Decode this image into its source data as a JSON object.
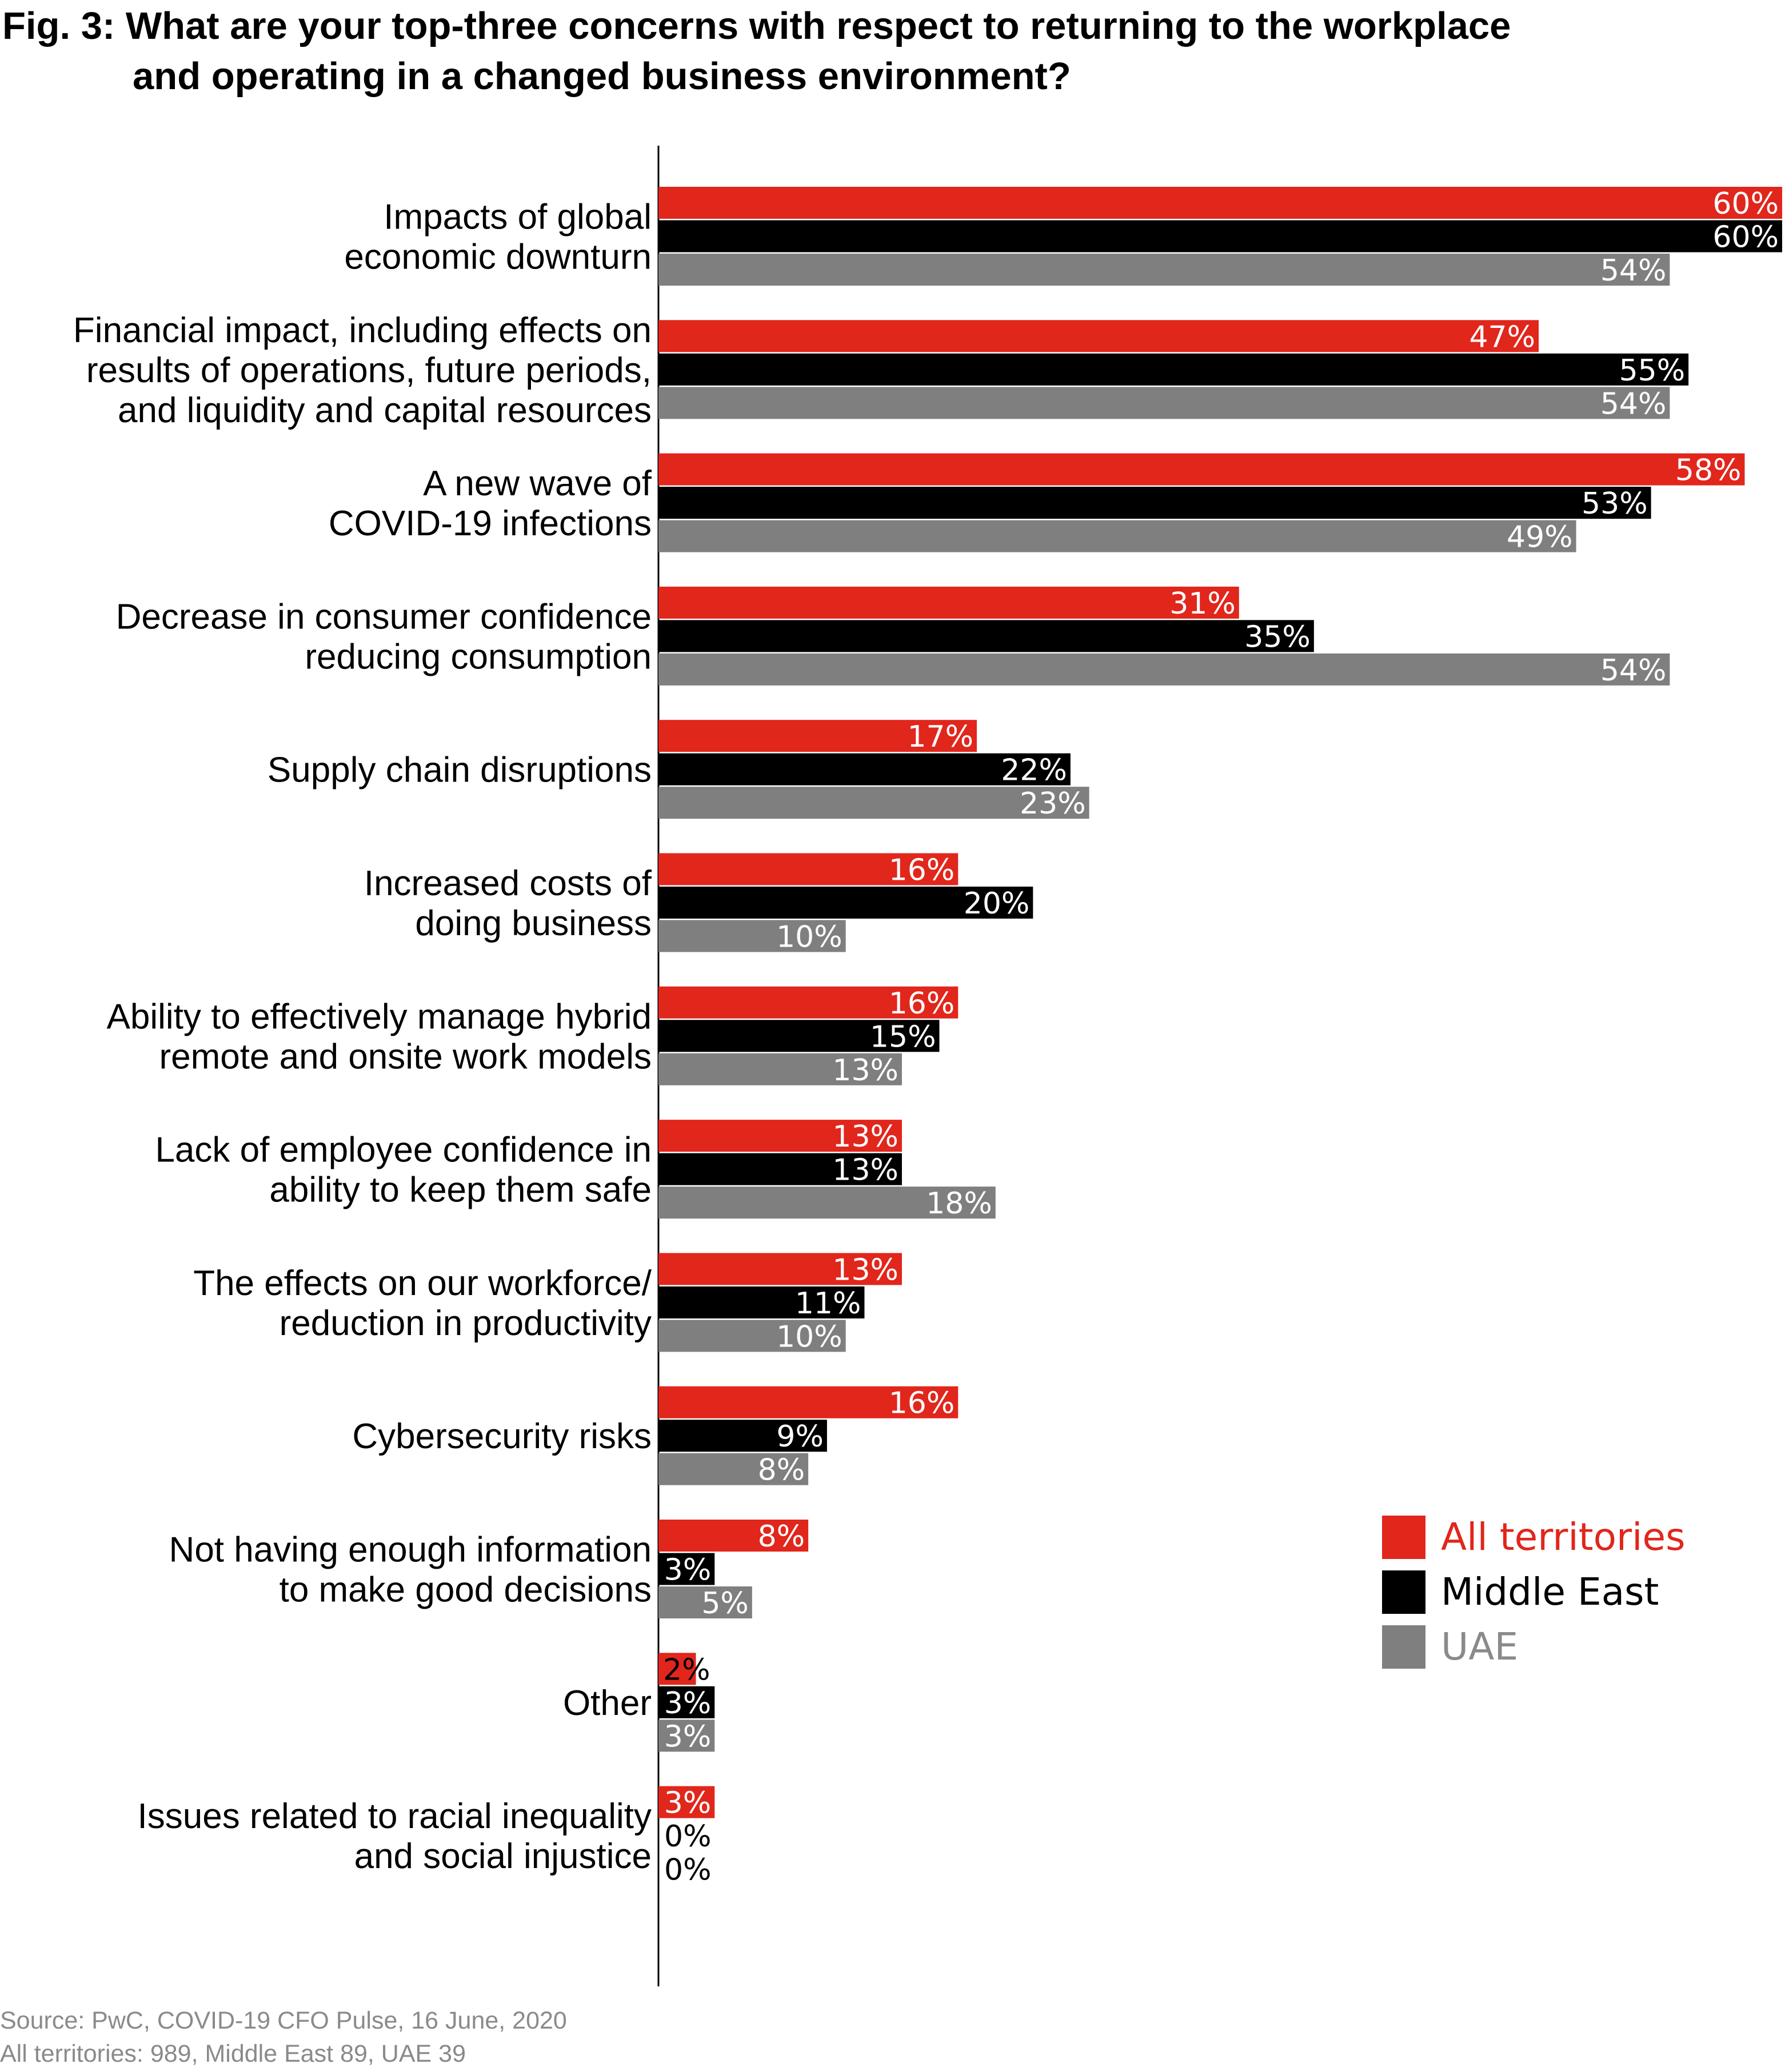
{
  "title": {
    "line1": "Fig. 3: What are your top-three concerns with respect to returning to the workplace",
    "line2": "and operating in a changed business environment?"
  },
  "source": {
    "line1": "Source: PwC, COVID-19 CFO Pulse, 16 June, 2020",
    "line2": "All territories: 989, Middle East 89, UAE 39"
  },
  "colors": {
    "all_territories": "#e1261c",
    "middle_east": "#000000",
    "uae": "#7f7f7f",
    "legend_all_text": "#e1261c",
    "legend_me_text": "#000000",
    "legend_uae_text": "#8a8a8a"
  },
  "chart_data": {
    "type": "bar",
    "orientation": "horizontal",
    "title": "Fig. 3: What are your top-three concerns with respect to returning to the workplace and operating in a changed business environment?",
    "xlabel": "",
    "ylabel": "",
    "xlim": [
      0,
      60
    ],
    "grid": false,
    "legend": "bottom-right",
    "value_suffix": "%",
    "categories": [
      [
        "Impacts of global",
        "economic downturn"
      ],
      [
        "Financial impact, including effects on",
        "results of operations, future periods,",
        "and liquidity and capital resources"
      ],
      [
        "A new wave of",
        "COVID-19 infections"
      ],
      [
        "Decrease in consumer confidence",
        "reducing consumption"
      ],
      [
        "Supply chain disruptions"
      ],
      [
        "Increased costs of",
        "doing business"
      ],
      [
        "Ability to effectively manage hybrid",
        "remote and onsite work models"
      ],
      [
        "Lack of employee confidence in",
        "ability to keep them safe"
      ],
      [
        "The effects on our workforce/",
        "reduction in productivity"
      ],
      [
        "Cybersecurity risks"
      ],
      [
        "Not having enough information",
        "to make good decisions"
      ],
      [
        "Other"
      ],
      [
        "Issues related to racial inequality",
        "and social injustice"
      ]
    ],
    "series": [
      {
        "name": "All territories",
        "values": [
          60,
          47,
          58,
          31,
          17,
          16,
          16,
          13,
          13,
          16,
          8,
          2,
          3
        ]
      },
      {
        "name": "Middle East",
        "values": [
          60,
          55,
          53,
          35,
          22,
          20,
          15,
          13,
          11,
          9,
          3,
          3,
          0
        ]
      },
      {
        "name": "UAE",
        "values": [
          54,
          54,
          49,
          54,
          23,
          10,
          13,
          18,
          10,
          8,
          5,
          3,
          0
        ]
      }
    ]
  }
}
